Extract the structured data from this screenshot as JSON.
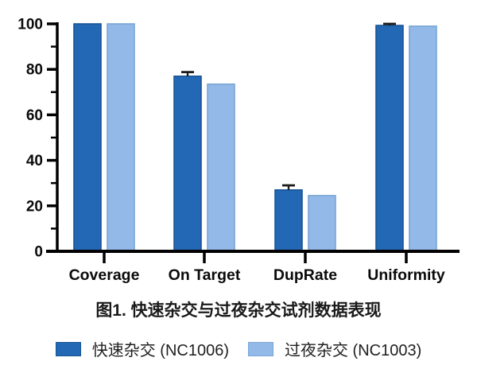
{
  "figure": {
    "caption": "图1. 快速杂交与过夜杂交试剂数据表现"
  },
  "legend": {
    "items": [
      {
        "label": "快速杂交 (NC1006)",
        "color": "#2368b4",
        "border": "#1a5596"
      },
      {
        "label": "过夜杂交 (NC1003)",
        "color": "#92b9e7",
        "border": "#79a5d6"
      }
    ]
  },
  "chart_data": {
    "type": "bar",
    "title": "图1. 快速杂交与过夜杂交试剂数据表现",
    "categories": [
      "Coverage",
      "On Target",
      "DupRate",
      "Uniformity"
    ],
    "series": [
      {
        "name": "快速杂交 (NC1006)",
        "color": "#2368b4",
        "border_color": "#1a5596",
        "values": [
          100,
          77,
          27,
          99.3
        ],
        "errors_plus": [
          0,
          1.8,
          2,
          0.7
        ]
      },
      {
        "name": "过夜杂交 (NC1003)",
        "color": "#92b9e7",
        "border_color": "#79a5d6",
        "values": [
          100,
          73.5,
          24.5,
          99
        ],
        "errors_plus": [
          0,
          0,
          0,
          0
        ]
      }
    ],
    "xlabel": "",
    "ylabel": "",
    "ylim": [
      0,
      100
    ],
    "yticks": [
      0,
      20,
      40,
      60,
      80,
      100
    ],
    "minor_yticks": [
      10,
      30,
      50,
      70,
      90
    ],
    "grid": false,
    "error_bars": "upper caps on dark series only",
    "axis_color": "#000000",
    "legend_position": "bottom"
  }
}
